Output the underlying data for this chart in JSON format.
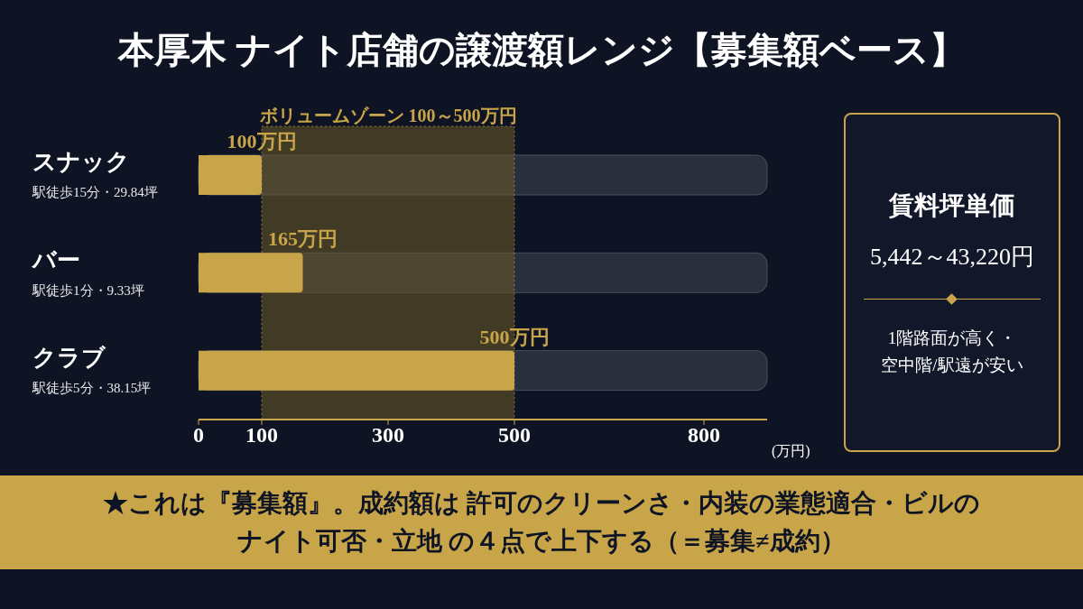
{
  "chart_data": [
    {
      "type": "bar",
      "orientation": "horizontal",
      "title": "本厚木 ナイト店舗の譲渡額レンジ【募集額ベース】",
      "categories": [
        "スナック",
        "バー",
        "クラブ"
      ],
      "values": [
        100,
        165,
        500
      ],
      "value_labels": [
        "100万円",
        "165万円",
        "500万円"
      ],
      "color": "#c9a54a",
      "xlim": [
        0,
        900
      ],
      "xticks": [
        0,
        100,
        300,
        500,
        800
      ],
      "xlabel": "(万円)",
      "bands": [
        {
          "axis": "x",
          "from": 100,
          "to": 500,
          "label": "ボリュームゾーン 100～500万円",
          "color": "#6b5a26"
        }
      ],
      "annotations": [
        "駅徒歩15分・29.84坪",
        "駅徒歩1分・9.33坪",
        "駅徒歩5分・38.15坪",
        "★これは『募集額』。成約額は 許可のクリーンさ・内装の業態適合・ビルのナイト可否・立地 の４点で上下する（＝募集≠成約）"
      ]
    },
    {
      "type": "other",
      "title": "賃料坪単価",
      "annotations": [
        "5,442～43,220円",
        "1階路面が高く・空中階/駅遠が安い"
      ]
    }
  ]
}
